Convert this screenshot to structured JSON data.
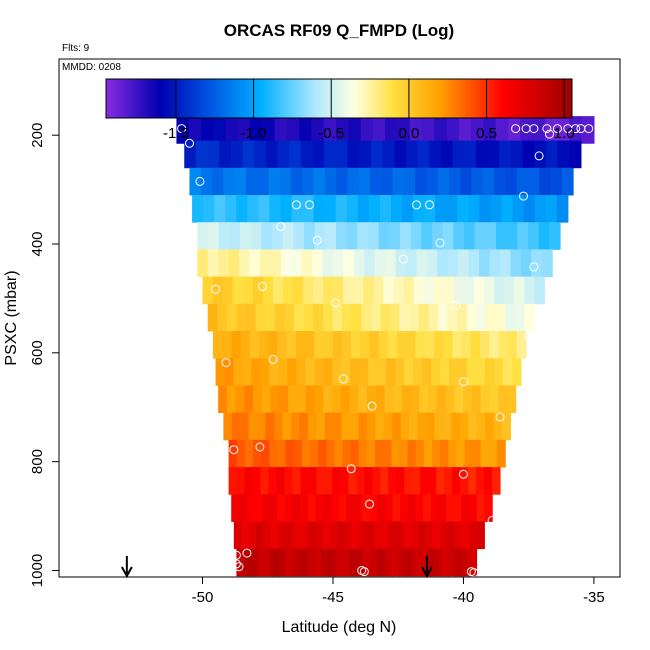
{
  "chart_data": {
    "type": "heatmap",
    "title": "ORCAS RF09 Q_FMPD (Log)",
    "notes": {
      "flights": "Flts: 9",
      "date": "MMDD: 0208"
    },
    "xlabel": "Latitude (deg N)",
    "ylabel": "PSXC (mbar)",
    "xlim": [
      -55.5,
      -34
    ],
    "ylim": [
      1012,
      60
    ],
    "y_reversed": true,
    "x_ticks": [
      -50,
      -45,
      -40,
      -35
    ],
    "y_ticks": [
      200,
      400,
      600,
      800,
      1000
    ],
    "colorbar": {
      "range": [
        -1.95,
        1.05
      ],
      "ticks": [
        -1.5,
        -1.0,
        -0.5,
        0.0,
        0.5,
        1.0
      ],
      "tick_labels": [
        "-1.5",
        "-1.0",
        "-0.5",
        "0.0",
        "0.5",
        "1.0"
      ],
      "colors": [
        "#8a2be2",
        "#0000b0",
        "#0050e0",
        "#00b0ff",
        "#b0e8ff",
        "#ffffe0",
        "#ffe040",
        "#ffa000",
        "#ff4000",
        "#ff0000",
        "#a00000"
      ],
      "stops": [
        -1.95,
        -1.6,
        -1.3,
        -0.95,
        -0.6,
        -0.35,
        -0.1,
        0.2,
        0.45,
        0.6,
        1.05
      ]
    },
    "levels": [
      {
        "p": 190,
        "lat_min": -51.0,
        "lat_max": -35.0,
        "v0": -1.6,
        "v1": -1.85
      },
      {
        "p": 235,
        "lat_min": -50.7,
        "lat_max": -35.5,
        "v0": -1.45,
        "v1": -1.55
      },
      {
        "p": 285,
        "lat_min": -50.5,
        "lat_max": -35.8,
        "v0": -1.15,
        "v1": -1.3
      },
      {
        "p": 335,
        "lat_min": -50.4,
        "lat_max": -36.0,
        "v0": -0.85,
        "v1": -1.05
      },
      {
        "p": 385,
        "lat_min": -50.2,
        "lat_max": -36.3,
        "v0": -0.5,
        "v1": -0.85
      },
      {
        "p": 435,
        "lat_min": -50.2,
        "lat_max": -36.6,
        "v0": -0.2,
        "v1": -0.7
      },
      {
        "p": 485,
        "lat_min": -50.0,
        "lat_max": -36.9,
        "v0": 0.0,
        "v1": -0.5
      },
      {
        "p": 535,
        "lat_min": -49.8,
        "lat_max": -37.3,
        "v0": 0.05,
        "v1": -0.4
      },
      {
        "p": 585,
        "lat_min": -49.6,
        "lat_max": -37.6,
        "v0": 0.15,
        "v1": -0.2
      },
      {
        "p": 635,
        "lat_min": -49.5,
        "lat_max": -37.8,
        "v0": 0.2,
        "v1": -0.1
      },
      {
        "p": 685,
        "lat_min": -49.4,
        "lat_max": -38.0,
        "v0": 0.25,
        "v1": 0.0
      },
      {
        "p": 735,
        "lat_min": -49.2,
        "lat_max": -38.2,
        "v0": 0.3,
        "v1": 0.1
      },
      {
        "p": 785,
        "lat_min": -49.0,
        "lat_max": -38.4,
        "v0": 0.4,
        "v1": 0.2
      },
      {
        "p": 835,
        "lat_min": -49.0,
        "lat_max": -38.6,
        "v0": 0.6,
        "v1": 0.55
      },
      {
        "p": 885,
        "lat_min": -48.9,
        "lat_max": -38.9,
        "v0": 0.65,
        "v1": 0.6
      },
      {
        "p": 935,
        "lat_min": -48.8,
        "lat_max": -39.2,
        "v0": 0.75,
        "v1": 0.75
      },
      {
        "p": 985,
        "lat_min": -48.7,
        "lat_max": -39.5,
        "v0": 0.9,
        "v1": 0.85
      }
    ],
    "observations": [
      [
        -50.8,
        188
      ],
      [
        -50.5,
        215
      ],
      [
        -35.2,
        188
      ],
      [
        -35.5,
        188
      ],
      [
        -35.7,
        188
      ],
      [
        -36.0,
        188
      ],
      [
        -36.4,
        188
      ],
      [
        -36.8,
        188
      ],
      [
        -37.3,
        188
      ],
      [
        -37.6,
        188
      ],
      [
        -38.0,
        188
      ],
      [
        -36.7,
        198
      ],
      [
        -37.1,
        238
      ],
      [
        -50.1,
        285
      ],
      [
        -37.7,
        312
      ],
      [
        -46.4,
        328
      ],
      [
        -45.9,
        328
      ],
      [
        -41.8,
        328
      ],
      [
        -41.3,
        328
      ],
      [
        -47.0,
        368
      ],
      [
        -45.6,
        393
      ],
      [
        -40.9,
        398
      ],
      [
        -42.3,
        428
      ],
      [
        -37.3,
        442
      ],
      [
        -47.7,
        478
      ],
      [
        -49.5,
        483
      ],
      [
        -44.9,
        508
      ],
      [
        -40.3,
        513
      ],
      [
        -37.5,
        568
      ],
      [
        -47.3,
        612
      ],
      [
        -49.1,
        618
      ],
      [
        -44.6,
        648
      ],
      [
        -40.0,
        653
      ],
      [
        -43.5,
        698
      ],
      [
        -38.6,
        718
      ],
      [
        -48.8,
        778
      ],
      [
        -47.8,
        773
      ],
      [
        -44.3,
        813
      ],
      [
        -40.0,
        823
      ],
      [
        -43.6,
        878
      ],
      [
        -38.9,
        908
      ],
      [
        -48.3,
        968
      ],
      [
        -48.7,
        972
      ],
      [
        -48.7,
        988
      ],
      [
        -48.6,
        993
      ],
      [
        -43.9,
        1000
      ],
      [
        -43.8,
        1002
      ],
      [
        -39.7,
        1002
      ],
      [
        -39.6,
        1004
      ]
    ],
    "markers": [
      {
        "lat": -52.9,
        "symbol": "down-arrow"
      },
      {
        "lat": -41.4,
        "symbol": "down-arrow"
      }
    ]
  }
}
